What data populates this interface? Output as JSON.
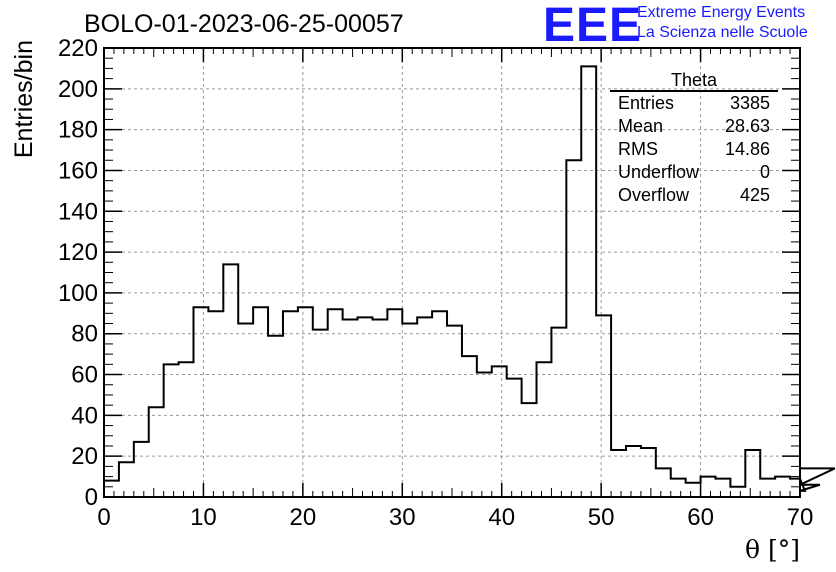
{
  "title": "BOLO-01-2023-06-25-00057",
  "logo": {
    "mark": "EEE",
    "line1": "Extreme Energy Events",
    "line2": "La Scienza nelle Scuole",
    "color": "#1a1aff"
  },
  "stats": {
    "name": "Theta",
    "rows": [
      {
        "label": "Entries",
        "value": "3385"
      },
      {
        "label": "Mean",
        "value": "28.63"
      },
      {
        "label": "RMS",
        "value": "14.86"
      },
      {
        "label": "Underflow",
        "value": "0"
      },
      {
        "label": "Overflow",
        "value": "425"
      }
    ]
  },
  "chart_data": {
    "type": "bar",
    "style": "step-histogram",
    "xlabel": "θ [°]",
    "ylabel": "Entries/bin",
    "xlim": [
      0,
      70
    ],
    "ylim": [
      0,
      220
    ],
    "xticks": [
      0,
      10,
      20,
      30,
      40,
      50,
      60,
      70
    ],
    "yticks": [
      0,
      20,
      40,
      60,
      80,
      100,
      120,
      140,
      160,
      180,
      200,
      220
    ],
    "grid": true,
    "bin_width": 1.5,
    "bin_edges_start": 0,
    "values": [
      8,
      17,
      27,
      44,
      65,
      66,
      93,
      91,
      114,
      85,
      93,
      79,
      91,
      93,
      82,
      92,
      87,
      88,
      87,
      92,
      85,
      88,
      91,
      84,
      69,
      61,
      64,
      58,
      46,
      66,
      83,
      165,
      211,
      89,
      23,
      25,
      24,
      14,
      9,
      7,
      10,
      9,
      5,
      23,
      9,
      10,
      9,
      3,
      6,
      14
    ]
  }
}
